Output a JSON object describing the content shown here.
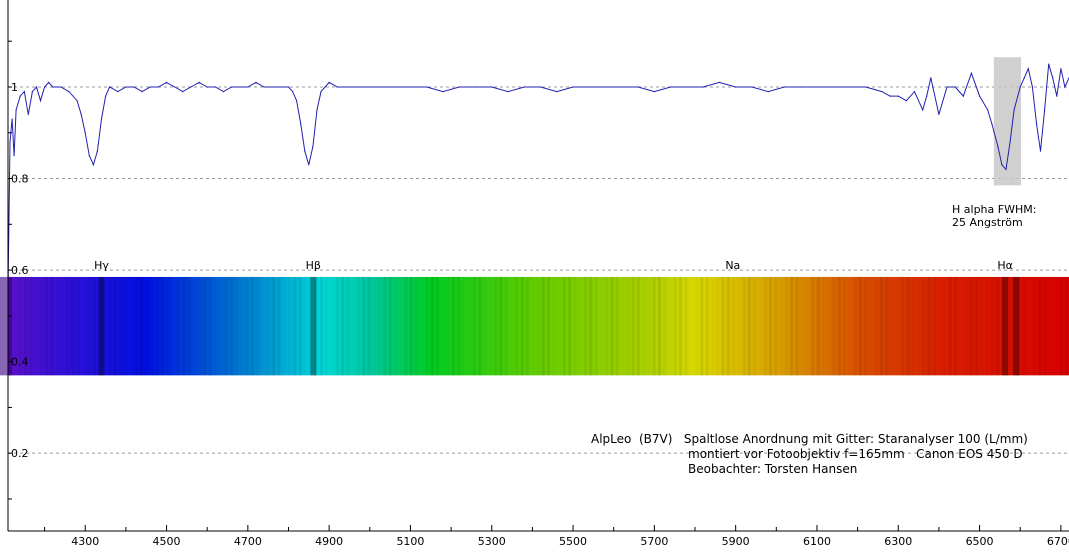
{
  "chart_data": {
    "type": "line",
    "xlim": [
      4110,
      6720
    ],
    "ylim": [
      0.03,
      1.19
    ],
    "x_ticks": [
      4300,
      4500,
      4700,
      4900,
      5100,
      5300,
      5500,
      5700,
      5900,
      6100,
      6300,
      6500,
      6700
    ],
    "x_tick_labels": [
      "4300",
      "4500",
      "4700",
      "4900",
      "5100",
      "5300",
      "5500",
      "5700",
      "5900",
      "6100",
      "6300",
      "6500",
      "6700"
    ],
    "y_ticks": [
      0.2,
      0.4,
      0.6,
      0.8,
      1.0
    ],
    "y_tick_labels": [
      "0.2",
      "0.4",
      "0.6",
      "0.8",
      "1"
    ],
    "grid": "horizontal-dashed",
    "series": [
      {
        "color": "#2020b0",
        "points": [
          [
            4110,
            0.55
          ],
          [
            4115,
            0.88
          ],
          [
            4120,
            0.93
          ],
          [
            4125,
            0.85
          ],
          [
            4130,
            0.95
          ],
          [
            4140,
            0.98
          ],
          [
            4150,
            0.99
          ],
          [
            4160,
            0.94
          ],
          [
            4170,
            0.99
          ],
          [
            4180,
            1.0
          ],
          [
            4190,
            0.97
          ],
          [
            4200,
            1.0
          ],
          [
            4210,
            1.01
          ],
          [
            4220,
            1.0
          ],
          [
            4240,
            1.0
          ],
          [
            4260,
            0.99
          ],
          [
            4280,
            0.97
          ],
          [
            4290,
            0.94
          ],
          [
            4300,
            0.9
          ],
          [
            4310,
            0.85
          ],
          [
            4320,
            0.83
          ],
          [
            4330,
            0.86
          ],
          [
            4340,
            0.93
          ],
          [
            4350,
            0.98
          ],
          [
            4360,
            1.0
          ],
          [
            4380,
            0.99
          ],
          [
            4400,
            1.0
          ],
          [
            4420,
            1.0
          ],
          [
            4440,
            0.99
          ],
          [
            4460,
            1.0
          ],
          [
            4480,
            1.0
          ],
          [
            4500,
            1.01
          ],
          [
            4520,
            1.0
          ],
          [
            4540,
            0.99
          ],
          [
            4560,
            1.0
          ],
          [
            4580,
            1.01
          ],
          [
            4600,
            1.0
          ],
          [
            4620,
            1.0
          ],
          [
            4640,
            0.99
          ],
          [
            4660,
            1.0
          ],
          [
            4680,
            1.0
          ],
          [
            4700,
            1.0
          ],
          [
            4720,
            1.01
          ],
          [
            4740,
            1.0
          ],
          [
            4760,
            1.0
          ],
          [
            4780,
            1.0
          ],
          [
            4800,
            1.0
          ],
          [
            4810,
            0.99
          ],
          [
            4820,
            0.97
          ],
          [
            4830,
            0.92
          ],
          [
            4840,
            0.86
          ],
          [
            4850,
            0.83
          ],
          [
            4860,
            0.87
          ],
          [
            4870,
            0.95
          ],
          [
            4880,
            0.99
          ],
          [
            4890,
            1.0
          ],
          [
            4900,
            1.01
          ],
          [
            4920,
            1.0
          ],
          [
            4940,
            1.0
          ],
          [
            4960,
            1.0
          ],
          [
            4980,
            1.0
          ],
          [
            5000,
            1.0
          ],
          [
            5020,
            1.0
          ],
          [
            5040,
            1.0
          ],
          [
            5060,
            1.0
          ],
          [
            5080,
            1.0
          ],
          [
            5100,
            1.0
          ],
          [
            5140,
            1.0
          ],
          [
            5180,
            0.99
          ],
          [
            5220,
            1.0
          ],
          [
            5260,
            1.0
          ],
          [
            5300,
            1.0
          ],
          [
            5340,
            0.99
          ],
          [
            5380,
            1.0
          ],
          [
            5420,
            1.0
          ],
          [
            5460,
            0.99
          ],
          [
            5500,
            1.0
          ],
          [
            5540,
            1.0
          ],
          [
            5580,
            1.0
          ],
          [
            5620,
            1.0
          ],
          [
            5660,
            1.0
          ],
          [
            5700,
            0.99
          ],
          [
            5740,
            1.0
          ],
          [
            5780,
            1.0
          ],
          [
            5820,
            1.0
          ],
          [
            5860,
            1.01
          ],
          [
            5900,
            1.0
          ],
          [
            5940,
            1.0
          ],
          [
            5980,
            0.99
          ],
          [
            6020,
            1.0
          ],
          [
            6060,
            1.0
          ],
          [
            6100,
            1.0
          ],
          [
            6140,
            1.0
          ],
          [
            6180,
            1.0
          ],
          [
            6220,
            1.0
          ],
          [
            6260,
            0.99
          ],
          [
            6280,
            0.98
          ],
          [
            6300,
            0.98
          ],
          [
            6320,
            0.97
          ],
          [
            6340,
            0.99
          ],
          [
            6360,
            0.95
          ],
          [
            6370,
            0.98
          ],
          [
            6380,
            1.02
          ],
          [
            6400,
            0.94
          ],
          [
            6420,
            1.0
          ],
          [
            6440,
            1.0
          ],
          [
            6460,
            0.98
          ],
          [
            6480,
            1.03
          ],
          [
            6500,
            0.98
          ],
          [
            6520,
            0.95
          ],
          [
            6530,
            0.92
          ],
          [
            6545,
            0.87
          ],
          [
            6555,
            0.83
          ],
          [
            6565,
            0.82
          ],
          [
            6575,
            0.88
          ],
          [
            6585,
            0.95
          ],
          [
            6600,
            1.0
          ],
          [
            6610,
            1.02
          ],
          [
            6620,
            1.04
          ],
          [
            6630,
            1.0
          ],
          [
            6640,
            0.92
          ],
          [
            6650,
            0.86
          ],
          [
            6660,
            0.95
          ],
          [
            6670,
            1.05
          ],
          [
            6680,
            1.02
          ],
          [
            6690,
            0.98
          ],
          [
            6700,
            1.04
          ],
          [
            6710,
            1.0
          ],
          [
            6720,
            1.02
          ]
        ]
      }
    ],
    "line_labels": [
      {
        "label": "Hγ",
        "x": 4340
      },
      {
        "label": "Hβ",
        "x": 4861
      },
      {
        "label": "Na",
        "x": 5893
      },
      {
        "label": "Hα",
        "x": 6563
      }
    ],
    "spectrum_band": {
      "y_top": 0.585,
      "y_bottom": 0.37,
      "color_stops": [
        {
          "x": 4110,
          "color": "#5a10c8"
        },
        {
          "x": 4250,
          "color": "#3010d8"
        },
        {
          "x": 4450,
          "color": "#0010e0"
        },
        {
          "x": 4700,
          "color": "#0080d0"
        },
        {
          "x": 4880,
          "color": "#00d8d8"
        },
        {
          "x": 5000,
          "color": "#00c8a0"
        },
        {
          "x": 5150,
          "color": "#00cc20"
        },
        {
          "x": 5400,
          "color": "#60cc00"
        },
        {
          "x": 5700,
          "color": "#b0d000"
        },
        {
          "x": 5800,
          "color": "#d8d800"
        },
        {
          "x": 6000,
          "color": "#d8a000"
        },
        {
          "x": 6200,
          "color": "#d85000"
        },
        {
          "x": 6400,
          "color": "#d82000"
        },
        {
          "x": 6720,
          "color": "#d80000"
        }
      ],
      "absorption_lines": [
        4340,
        4861,
        6563,
        6590
      ]
    },
    "shaded_region": {
      "x_from": 6535,
      "x_to": 6602,
      "y_from": 0.785,
      "y_to": 1.065
    },
    "annotation": {
      "lines": [
        "H alpha FWHM:",
        "25 Angström"
      ]
    },
    "note": {
      "lines": [
        "AlpLeo  (B7V)   Spaltlose Anordnung mit Gitter: Staranalyser 100 (L/mm)",
        "montiert vor Fotoobjektiv f=165mm   Canon EOS 450 D",
        "Beobachter: Torsten Hansen"
      ]
    }
  }
}
